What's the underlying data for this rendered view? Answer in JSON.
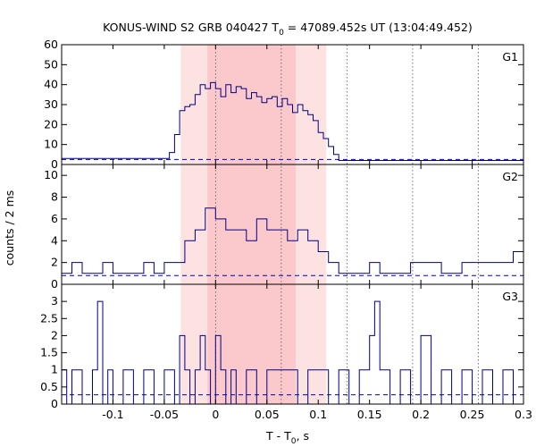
{
  "chart_data": {
    "type": "line",
    "title_main": "KONUS-WIND S2 GRB 040427 T",
    "title_sub": "0",
    "title_rest": " = 47089.452s UT (13:04:49.452)",
    "xlabel_main": "T - T",
    "xlabel_sub": "0",
    "xlabel_rest": ", s",
    "ylabel": "counts / 2 ms",
    "xlim": [
      -0.15,
      0.3
    ],
    "x_ticks": [
      -0.1,
      -0.05,
      0,
      0.05,
      0.1,
      0.15,
      0.2,
      0.25,
      0.3
    ],
    "x_tick_labels": [
      "-0.1",
      "-0.05",
      "0",
      "0.05",
      "0.1",
      "0.15",
      "0.2",
      "0.25",
      "0.3"
    ],
    "shaded_regions": [
      {
        "x0": -0.034,
        "x1": 0.108,
        "color": "#fde2e2"
      },
      {
        "x0": -0.008,
        "x1": 0.078,
        "color": "#fbc8cc"
      }
    ],
    "vertical_lines": [
      0,
      0.064,
      0.128,
      0.192,
      0.256
    ],
    "line_color": "#000080",
    "background_color": "#0000c0",
    "panels": [
      {
        "name": "G1",
        "ylim": [
          0,
          60
        ],
        "y_ticks": [
          0,
          10,
          20,
          30,
          40,
          50,
          60
        ],
        "y_tick_labels": [
          "0",
          "10",
          "20",
          "30",
          "40",
          "50",
          "60"
        ],
        "background": 2.5,
        "step_x": [
          -0.15,
          -0.045,
          -0.04,
          -0.035,
          -0.03,
          -0.025,
          -0.02,
          -0.015,
          -0.01,
          -0.005,
          0,
          0.005,
          0.01,
          0.015,
          0.02,
          0.025,
          0.03,
          0.035,
          0.04,
          0.045,
          0.05,
          0.055,
          0.06,
          0.065,
          0.07,
          0.075,
          0.08,
          0.085,
          0.09,
          0.095,
          0.1,
          0.105,
          0.11,
          0.115,
          0.12,
          0.3
        ],
        "step_y": [
          3,
          6,
          15,
          27,
          29,
          30,
          35,
          40,
          38,
          41,
          38,
          34,
          40,
          36,
          39,
          38,
          33,
          36,
          34,
          31,
          33,
          34,
          29,
          33,
          30,
          26,
          30,
          27,
          25,
          22,
          16,
          13,
          9,
          5,
          2,
          2
        ]
      },
      {
        "name": "G2",
        "ylim": [
          0,
          11
        ],
        "y_ticks": [
          0,
          2,
          4,
          6,
          8,
          10
        ],
        "y_tick_labels": [
          "0",
          "2",
          "4",
          "6",
          "8",
          "10"
        ],
        "background": 0.8,
        "step_x": [
          -0.15,
          -0.14,
          -0.13,
          -0.12,
          -0.11,
          -0.1,
          -0.09,
          -0.08,
          -0.07,
          -0.06,
          -0.05,
          -0.04,
          -0.03,
          -0.02,
          -0.01,
          0,
          0.01,
          0.02,
          0.03,
          0.04,
          0.05,
          0.06,
          0.07,
          0.08,
          0.09,
          0.1,
          0.11,
          0.12,
          0.13,
          0.14,
          0.15,
          0.16,
          0.17,
          0.18,
          0.19,
          0.2,
          0.21,
          0.22,
          0.23,
          0.24,
          0.25,
          0.26,
          0.27,
          0.28,
          0.29,
          0.3
        ],
        "step_y": [
          1,
          2,
          1,
          1,
          2,
          1,
          1,
          1,
          2,
          1,
          2,
          2,
          4,
          5,
          7,
          6,
          5,
          5,
          4,
          6,
          5,
          5,
          4,
          5,
          4,
          3,
          2,
          1,
          1,
          1,
          2,
          1,
          1,
          1,
          2,
          2,
          2,
          1,
          1,
          2,
          2,
          2,
          2,
          2,
          3,
          2
        ]
      },
      {
        "name": "G3",
        "ylim": [
          0,
          3.5
        ],
        "y_ticks": [
          0,
          0.5,
          1,
          1.5,
          2,
          2.5,
          3
        ],
        "y_tick_labels": [
          "0",
          "0.5",
          "1",
          "1.5",
          "2",
          "2.5",
          "3"
        ],
        "background": 0.27,
        "step_x": [
          -0.15,
          -0.145,
          -0.14,
          -0.13,
          -0.12,
          -0.115,
          -0.11,
          -0.105,
          -0.1,
          -0.09,
          -0.08,
          -0.07,
          -0.06,
          -0.05,
          -0.04,
          -0.035,
          -0.03,
          -0.025,
          -0.02,
          -0.015,
          -0.01,
          -0.005,
          0,
          0.005,
          0.01,
          0.015,
          0.02,
          0.03,
          0.04,
          0.05,
          0.06,
          0.07,
          0.08,
          0.09,
          0.1,
          0.11,
          0.12,
          0.13,
          0.14,
          0.15,
          0.155,
          0.16,
          0.17,
          0.18,
          0.19,
          0.2,
          0.21,
          0.22,
          0.23,
          0.24,
          0.25,
          0.26,
          0.27,
          0.28,
          0.29,
          0.3
        ],
        "step_y": [
          1,
          0,
          1,
          0,
          1,
          3,
          0,
          1,
          0,
          1,
          0,
          1,
          0,
          1,
          0,
          2,
          1,
          0,
          1,
          2,
          1,
          0,
          2,
          1,
          0,
          1,
          0,
          1,
          0,
          1,
          1,
          1,
          0,
          1,
          1,
          0,
          1,
          0,
          1,
          2,
          3,
          1,
          0,
          1,
          0,
          2,
          0,
          1,
          0,
          1,
          0,
          1,
          0,
          1,
          0,
          1
        ]
      }
    ]
  }
}
